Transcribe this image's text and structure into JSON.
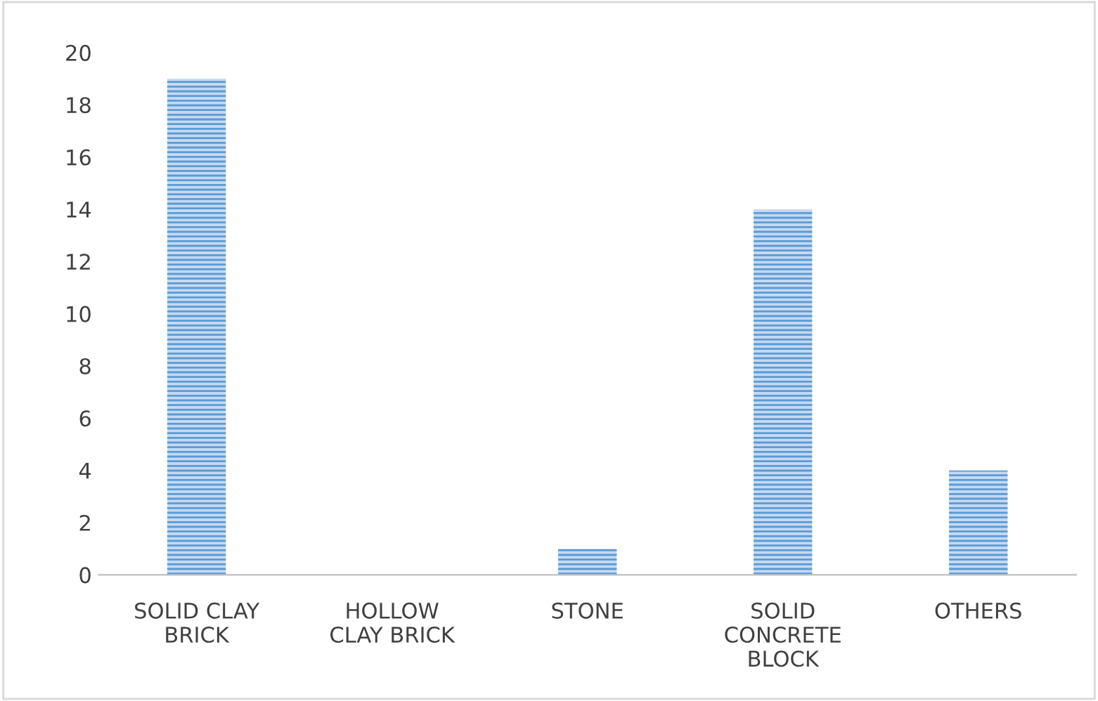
{
  "chart_data": {
    "type": "bar",
    "categories": [
      "SOLID CLAY\nBRICK",
      "HOLLOW\nCLAY BRICK",
      "STONE",
      "SOLID\nCONCRETE\nBLOCK",
      "OTHERS"
    ],
    "values": [
      19,
      0,
      1,
      14,
      4
    ],
    "color": "#5b9bd5",
    "ylim": [
      0,
      20
    ],
    "yticks": [
      0,
      2,
      4,
      6,
      8,
      10,
      12,
      14,
      16,
      18,
      20
    ],
    "grid": false,
    "legend": false
  }
}
